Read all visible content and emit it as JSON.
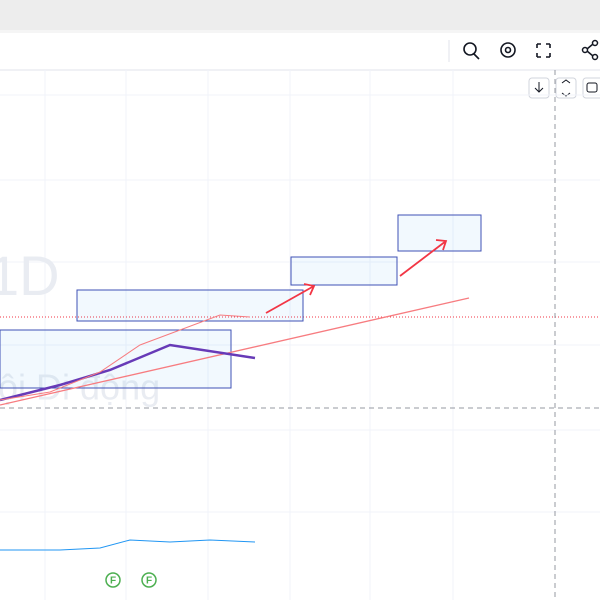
{
  "watermark": {
    "symbol": "1D",
    "name": "ội Di động"
  },
  "markers": [
    "F",
    "F"
  ]
}
